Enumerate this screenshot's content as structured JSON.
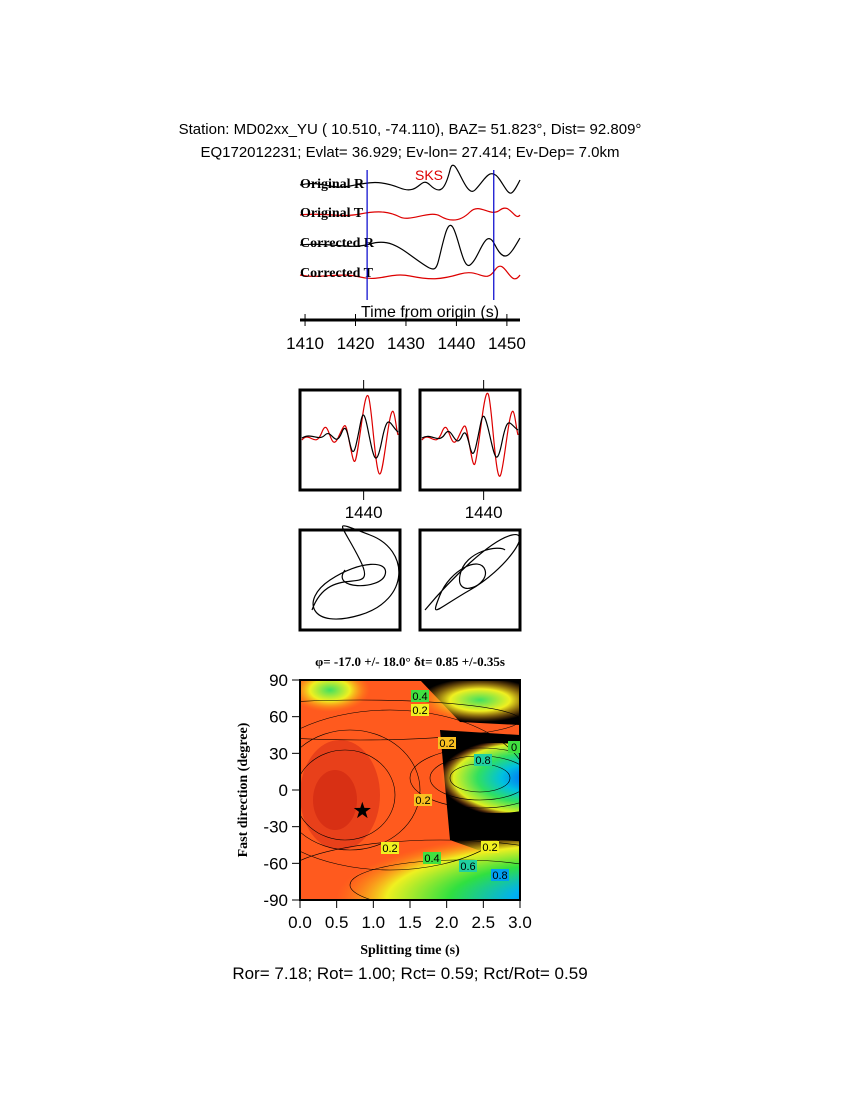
{
  "header": {
    "line1": "Station: MD02xx_YU (  10.510,  -74.110), BAZ=   51.823°, Dist=   92.809°",
    "line2": "EQ172012231; Evlat=  36.929; Ev-lon=  27.414; Ev-Dep=  7.0km"
  },
  "traces": {
    "labels": [
      "Original R",
      "Original T",
      "Corrected R",
      "Corrected T"
    ],
    "phase": "SKS",
    "xlabel": "Time from origin (s)",
    "xlim": [
      1409,
      1452.6
    ],
    "xticks": [
      1410,
      1420,
      1430,
      1440,
      1450
    ],
    "window": [
      1422.3,
      1447.4
    ]
  },
  "waveform_panels": {
    "xlim": [
      1426,
      1448
    ],
    "xticks": [
      1440
    ]
  },
  "splitting_map": {
    "title": "φ= -17.0 +/- 18.0° δt= 0.85 +/-0.35s",
    "xlabel": "Splitting time (s)",
    "ylabel": "Fast direction (degree)",
    "xlim": [
      0,
      3
    ],
    "ylim": [
      -90,
      90
    ],
    "xticks": [
      {
        "value": 0,
        "label": "0.0"
      },
      {
        "value": 0.5,
        "label": "0.5"
      },
      {
        "value": 1,
        "label": "1.0"
      },
      {
        "value": 1.5,
        "label": "1.5"
      },
      {
        "value": 2,
        "label": "2.0"
      },
      {
        "value": 2.5,
        "label": "2.5"
      },
      {
        "value": 3,
        "label": "3.0"
      }
    ],
    "yticks": [
      -90,
      -60,
      -30,
      0,
      30,
      60,
      90
    ],
    "best": {
      "dt": 0.85,
      "phi": -17
    },
    "contour_labels": [
      "0.2",
      "0.4",
      "0.6",
      "0.8",
      "0"
    ]
  },
  "footer": "Ror= 7.18; Rot= 1.00; Rct= 0.59; Rct/Rot= 0.59"
}
